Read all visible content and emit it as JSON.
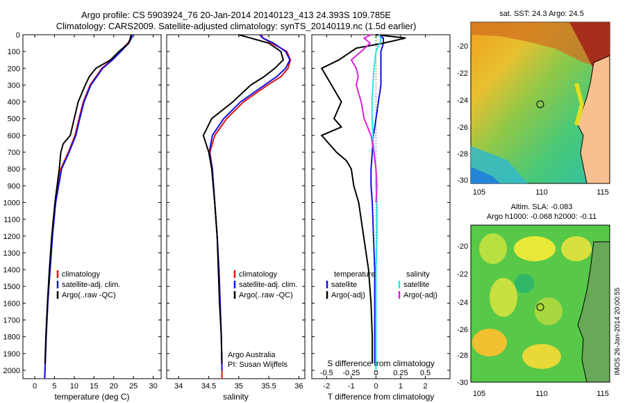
{
  "title_line1": "Argo profile: CS 5903924_76 20-Jan-2014 20140123_413 24.393S 109.785E",
  "title_line2": "Climatology: CARS2009. Satellite-adjusted climatology: synTS_20140119.nc (1.5d earlier)",
  "colors": {
    "climatology": "#e01010",
    "satellite": "#1010e0",
    "argo": "#000000",
    "sal_satellite": "#20e8e8",
    "sal_argo": "#e020e0"
  },
  "chart_data": [
    {
      "type": "line",
      "xlabel": "temperature (deg C)",
      "ylabel": "",
      "xlim": [
        -3,
        32
      ],
      "ylim": [
        2050,
        0
      ],
      "xticks": [
        0,
        5,
        10,
        15,
        20,
        25,
        30
      ],
      "yticks": [
        0,
        100,
        200,
        300,
        400,
        500,
        600,
        700,
        800,
        900,
        1000,
        1100,
        1200,
        1300,
        1400,
        1500,
        1600,
        1700,
        1800,
        1900,
        2000
      ],
      "legend": [
        "climatology",
        "satellite-adj. clim.",
        "Argo(..raw -QC)"
      ],
      "series": [
        {
          "name": "climatology",
          "y": [
            0,
            20,
            50,
            100,
            150,
            200,
            300,
            400,
            500,
            600,
            700,
            800,
            1000,
            1200,
            1400,
            1600,
            1800,
            2000,
            2050
          ],
          "x": [
            24.5,
            24.3,
            23.6,
            21.5,
            19.5,
            17,
            14,
            12.3,
            11.2,
            10.2,
            8.5,
            6.6,
            5.2,
            4.4,
            3.8,
            3.3,
            2.9,
            2.6,
            2.5
          ]
        },
        {
          "name": "satellite-adj. clim.",
          "y": [
            0,
            20,
            50,
            100,
            150,
            200,
            300,
            400,
            500,
            600,
            700,
            800,
            1000,
            1200,
            1400,
            1600,
            1800,
            2000,
            2050
          ],
          "x": [
            24.7,
            24.5,
            23.8,
            21.8,
            19.7,
            17.2,
            14.2,
            12.5,
            11.4,
            10.4,
            8.7,
            6.8,
            5.3,
            4.5,
            3.9,
            3.3,
            2.9,
            2.6,
            2.5
          ]
        },
        {
          "name": "Argo(..raw -QC)",
          "y": [
            0,
            20,
            50,
            100,
            150,
            200,
            250,
            300,
            400,
            500,
            600,
            650,
            700,
            800,
            1000,
            1200,
            1400,
            1600,
            1800,
            1960
          ],
          "x": [
            24.4,
            24.2,
            23.8,
            21.3,
            19.2,
            15.5,
            13.8,
            12.8,
            11.0,
            10.0,
            9.0,
            7.2,
            6.6,
            6.2,
            5.1,
            4.3,
            3.7,
            3.2,
            2.8,
            2.6
          ]
        }
      ]
    },
    {
      "type": "line",
      "xlabel": "salinity",
      "ylabel": "",
      "xlim": [
        33.8,
        36.1
      ],
      "ylim": [
        2050,
        0
      ],
      "xticks": [
        34,
        34.5,
        35,
        35.5,
        36
      ],
      "legend": [
        "climatology",
        "satellite-adj. clim.",
        "Argo(..raw -QC)"
      ],
      "annotations": [
        "Argo Australia",
        "PI: Susan Wijffels"
      ],
      "series": [
        {
          "name": "climatology",
          "y": [
            0,
            20,
            50,
            100,
            150,
            200,
            250,
            300,
            400,
            500,
            600,
            700,
            800,
            1000,
            1200,
            1400,
            1600,
            1800,
            2000,
            2050
          ],
          "x": [
            35.38,
            35.4,
            35.55,
            35.8,
            35.86,
            35.82,
            35.7,
            35.48,
            35.08,
            34.8,
            34.6,
            34.52,
            34.56,
            34.6,
            34.64,
            34.67,
            34.69,
            34.71,
            34.72,
            34.72
          ]
        },
        {
          "name": "satellite-adj. clim.",
          "y": [
            0,
            20,
            50,
            100,
            150,
            200,
            250,
            300,
            400,
            500,
            600,
            700,
            800,
            1000,
            1200,
            1400,
            1600,
            1800,
            2000
          ],
          "x": [
            35.35,
            35.4,
            35.58,
            35.78,
            35.85,
            35.78,
            35.63,
            35.43,
            35.03,
            34.75,
            34.56,
            34.51,
            34.56,
            34.6,
            34.64,
            34.67,
            34.69,
            34.71,
            34.72
          ]
        },
        {
          "name": "Argo(..raw -QC)",
          "y": [
            0,
            20,
            50,
            100,
            150,
            200,
            250,
            300,
            400,
            500,
            600,
            700,
            800,
            1000,
            1200,
            1400,
            1600,
            1800,
            1960
          ],
          "x": [
            35.0,
            35.2,
            35.5,
            35.7,
            35.74,
            35.6,
            35.42,
            35.2,
            34.9,
            34.55,
            34.41,
            34.5,
            34.55,
            34.6,
            34.64,
            34.66,
            34.68,
            34.71,
            34.72
          ]
        }
      ]
    },
    {
      "type": "line",
      "xlabel": "T difference from climatology",
      "top_axis_label": "S difference from climatology",
      "xlim": [
        -2.6,
        3.0
      ],
      "ylim": [
        2050,
        0
      ],
      "xticks": [
        -2,
        -1,
        0,
        1,
        2
      ],
      "top_ticks": [
        -0.5,
        -0.25,
        0,
        0.25,
        0.5
      ],
      "legend_left": [
        "temperature",
        "satellite",
        "Argo(-adj)"
      ],
      "legend_right": [
        "salinity",
        "satellite",
        "Argo(-adj)"
      ],
      "series": [
        {
          "name": "temperature satellite",
          "y": [
            0,
            20,
            50,
            100,
            200,
            300,
            400,
            500,
            600,
            700,
            800,
            900,
            1000,
            1200,
            1400,
            1600,
            1800,
            1960
          ],
          "x": [
            0.1,
            0.3,
            0.3,
            0.2,
            0.2,
            0.2,
            0.1,
            0.0,
            -0.1,
            -0.15,
            -0.2,
            -0.2,
            -0.15,
            -0.1,
            -0.05,
            -0.05,
            -0.05,
            -0.05
          ]
        },
        {
          "name": "temperature Argo(-adj)",
          "y": [
            0,
            20,
            50,
            80,
            100,
            150,
            200,
            300,
            400,
            500,
            550,
            600,
            650,
            700,
            750,
            800,
            900,
            1000,
            1200,
            1400,
            1600,
            1800,
            1960
          ],
          "x": [
            0.0,
            1.2,
            0.3,
            -0.8,
            -1.0,
            -1.5,
            -2.2,
            -1.8,
            -1.4,
            -1.7,
            -1.4,
            -2.2,
            -1.9,
            -1.6,
            -1.2,
            -1.0,
            -0.9,
            -0.7,
            -0.5,
            -0.3,
            -0.2,
            -0.15,
            -0.15
          ]
        },
        {
          "name": "salinity satellite",
          "y": [
            0,
            20,
            50,
            100,
            200,
            300,
            400,
            500,
            600,
            700,
            800,
            900,
            1000,
            1200,
            1400,
            1600,
            1800,
            2000
          ],
          "x": [
            0.03,
            0.05,
            0.04,
            0.0,
            -0.02,
            -0.03,
            -0.04,
            -0.04,
            -0.03,
            -0.02,
            0.0,
            0.0,
            0.01,
            0.01,
            0.0,
            0.0,
            0.0,
            0.0
          ]
        },
        {
          "name": "salinity Argo(-adj)",
          "y": [
            0,
            20,
            50,
            100,
            150,
            200,
            250,
            300,
            400,
            500,
            600,
            700,
            800,
            900,
            1000
          ],
          "x": [
            -0.05,
            -0.12,
            -0.06,
            -0.15,
            -0.25,
            -0.2,
            -0.18,
            -0.2,
            -0.15,
            -0.12,
            -0.05,
            -0.02,
            0.0,
            0.01,
            0.0
          ]
        }
      ]
    }
  ],
  "map1": {
    "title": "sat. SST: 24.3 Argo: 24.5",
    "xticks": [
      "105",
      "110",
      "115"
    ],
    "yticks": [
      "-20",
      "-22",
      "-24",
      "-26",
      "-28",
      "-30"
    ]
  },
  "map2": {
    "title_line1": "Altim. SLA: -0.083",
    "title_line2": "Argo h1000: -0.068 h2000: -0.11",
    "xticks": [
      "105",
      "110",
      "115"
    ],
    "yticks": [
      "-20",
      "-22",
      "-24",
      "-26",
      "-28",
      "-30"
    ]
  },
  "stamp": "IMOS 26-Jan-2014 20:00:55"
}
